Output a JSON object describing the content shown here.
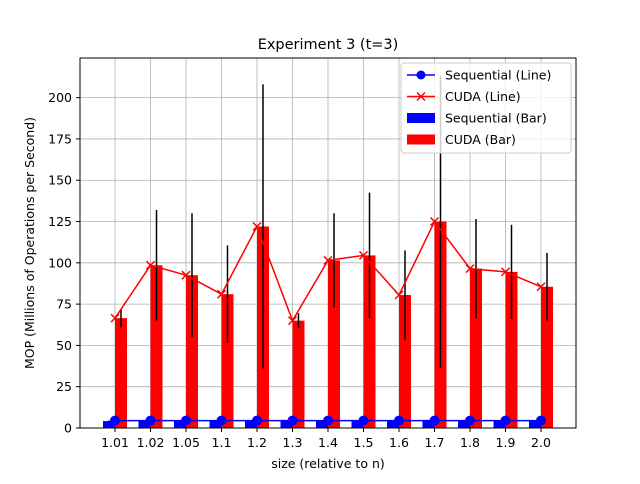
{
  "chart_data": {
    "type": "bar",
    "title": "Experiment 3 (t=3)",
    "xlabel": "size (relative to n)",
    "ylabel": "MOP (Millions of Operations per Second)",
    "categories": [
      "1.01",
      "1.02",
      "1.05",
      "1.1",
      "1.2",
      "1.3",
      "1.4",
      "1.5",
      "1.6",
      "1.7",
      "1.8",
      "1.9",
      "2.0"
    ],
    "ylim": [
      0,
      224
    ],
    "yticks": [
      0,
      25,
      50,
      75,
      100,
      125,
      150,
      175,
      200
    ],
    "grid": true,
    "legend_position": "top-right",
    "series": [
      {
        "name": "Sequential (Bar)",
        "kind": "bar",
        "color": "#0000ff",
        "values": [
          4.2,
          4.2,
          4.2,
          4.2,
          4.2,
          4.2,
          4.2,
          4.2,
          4.2,
          4.2,
          4.2,
          4.2,
          4.2
        ],
        "error": [
          0.3,
          0.3,
          0.3,
          0.3,
          0.3,
          0.3,
          0.3,
          0.3,
          0.3,
          0.3,
          0.3,
          0.3,
          0.3
        ]
      },
      {
        "name": "CUDA (Bar)",
        "kind": "bar",
        "color": "#ff0000",
        "values": [
          66.5,
          98.5,
          92.5,
          81,
          122,
          65,
          101.5,
          104.5,
          80.5,
          125,
          96.5,
          94.5,
          85.5
        ],
        "error": [
          5.5,
          33.5,
          37.5,
          29.5,
          86,
          4.5,
          28.5,
          38,
          27,
          88.5,
          30,
          28.5,
          20.5
        ]
      },
      {
        "name": "Sequential (Line)",
        "kind": "line",
        "marker": "circle",
        "color": "#0000ff",
        "values": [
          4.5,
          4.5,
          4.5,
          4.5,
          4.5,
          4.5,
          4.5,
          4.5,
          4.5,
          4.5,
          4.5,
          4.5,
          4.5
        ]
      },
      {
        "name": "CUDA (Line)",
        "kind": "line",
        "marker": "x",
        "color": "#ff0000",
        "values": [
          66.5,
          98.5,
          92.5,
          81,
          122,
          65,
          101.5,
          104.5,
          80.5,
          125,
          96.5,
          94.5,
          85.5
        ]
      }
    ],
    "legend": [
      "Sequential (Line)",
      "CUDA (Line)",
      "Sequential (Bar)",
      "CUDA (Bar)"
    ]
  }
}
